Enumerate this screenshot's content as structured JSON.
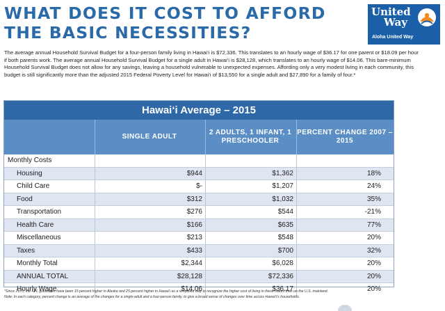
{
  "header": {
    "title_line1": "WHAT DOES IT COST TO AFFORD",
    "title_line2": "THE BASIC NECESSITIES?"
  },
  "logo": {
    "name_line1": "United",
    "name_line2": "Way",
    "subtitle": "Aloha United Way",
    "icon": "united-way-hand-logo-icon",
    "bg_color": "#1a5fa8",
    "mark_color": "#f08a24"
  },
  "intro_text": "The average annual Household Survival Budget for a four-person family living in Hawai‘i is $72,336. This translates to an hourly wage of $36.17 for one parent or $18.09 per hour if both parents work. The average annual Household Survival Budget for a single adult in Hawai‘i is $28,128, which translates to an hourly wage of $14.06. This bare-minimum Household Survival Budget does not allow for any savings, leaving a household vulnerable to unexpected expenses. Affording only a very modest living in each community, this budget is still significantly more than the adjusted 2015 Federal Poverty Level for Hawai‘i of $13,550 for a single adult and $27,890 for a family of four.*",
  "table": {
    "title": "Hawai‘i Average – 2015",
    "columns": {
      "single": "SINGLE ADULT",
      "family": "2 ADULTS, 1 INFANT, 1 PRESCHOOLER",
      "change": "PERCENT CHANGE 2007 – 2015"
    },
    "section_label": "Monthly Costs",
    "rows": [
      {
        "label": "Housing",
        "single": "$944",
        "family": "$1,362",
        "change": "18%"
      },
      {
        "label": "Child Care",
        "single": "$-",
        "family": "$1,207",
        "change": "24%"
      },
      {
        "label": "Food",
        "single": "$312",
        "family": "$1,032",
        "change": "35%"
      },
      {
        "label": "Transportation",
        "single": "$276",
        "family": "$544",
        "change": "-21%"
      },
      {
        "label": "Health Care",
        "single": "$166",
        "family": "$635",
        "change": "77%"
      },
      {
        "label": "Miscellaneous",
        "single": "$213",
        "family": "$548",
        "change": "20%"
      },
      {
        "label": "Taxes",
        "single": "$433",
        "family": "$700",
        "change": "32%"
      },
      {
        "label": "Monthly Total",
        "single": "$2,344",
        "family": "$6,028",
        "change": "20%"
      },
      {
        "label": "ANNUAL TOTAL",
        "single": "$28,128",
        "family": "$72,336",
        "change": "20%"
      },
      {
        "label": "Hourly Wage",
        "single": "$14.06",
        "family": "$36.17",
        "change": "20%"
      }
    ],
    "colors": {
      "title_bg": "#2e68a7",
      "header_bg": "#5c8ec6",
      "stripe": "#dfe6f1"
    }
  },
  "footnotes": {
    "line1": "*Since 1970, the FPL guidelines have been 15 percent higher in Alaska and 25 percent higher in Hawai‘i as a simplified way to recognize the higher cost of living in these states than on the U.S. mainland.",
    "line2": "Note: In each category, percent change is an average of the changes for a single-adult and a four-person family, to give a broad sense of changes over time across Hawai‘i's households."
  },
  "headline_color": "#2a6aa8"
}
